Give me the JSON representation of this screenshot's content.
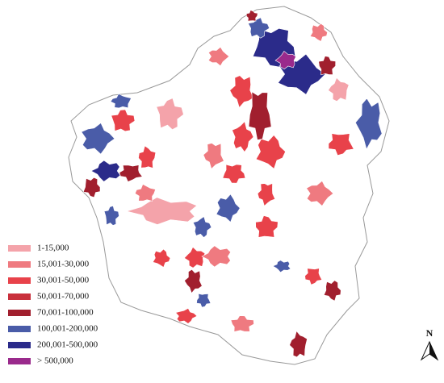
{
  "legend": {
    "items": [
      {
        "label": "1-15,000",
        "color": "#f4a3aa"
      },
      {
        "label": "15,001-30,000",
        "color": "#ef7a80"
      },
      {
        "label": "30,001-50,000",
        "color": "#e8424a"
      },
      {
        "label": "50,001-70,000",
        "color": "#c9303c"
      },
      {
        "label": "70,001-100,000",
        "color": "#a11f2e"
      },
      {
        "label": "100,001-200,000",
        "color": "#4a5ca8"
      },
      {
        "label": "200,001-500,000",
        "color": "#2b2b8a"
      },
      {
        "label": "> 500,000",
        "color": "#9a2a8c"
      }
    ]
  },
  "north": "N"
}
